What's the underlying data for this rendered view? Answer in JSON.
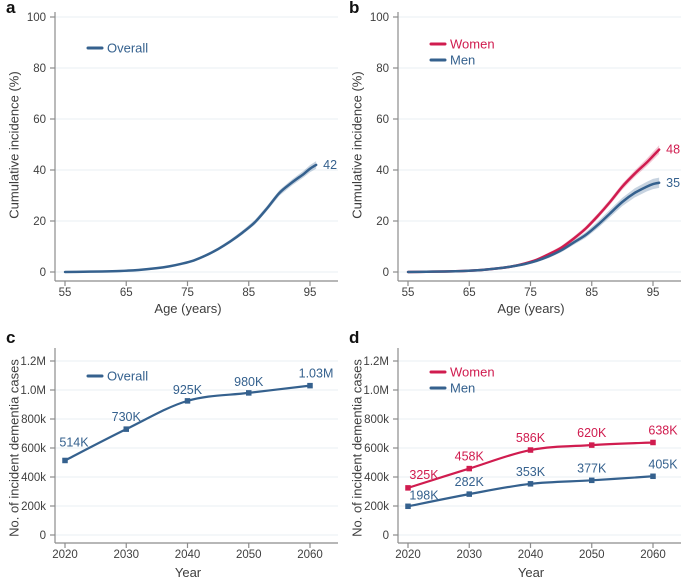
{
  "figure": {
    "background": "#ffffff",
    "grid_color": "#e8eff3",
    "axis_color": "#8c8c8c",
    "tick_text_color": "#404040"
  },
  "chart_data": [
    {
      "panel_label": "a",
      "type": "line",
      "row": "top",
      "xlabel": "Age (years)",
      "ylabel": "Cumulative incidence (%)",
      "x_ticks": [
        55,
        65,
        75,
        85,
        95
      ],
      "x_tick_labels": [
        "55",
        "65",
        "75",
        "85",
        "95"
      ],
      "y_ticks": [
        0,
        20,
        40,
        60,
        80,
        100
      ],
      "y_tick_labels": [
        "0",
        "20",
        "40",
        "60",
        "80",
        "100"
      ],
      "xlim": [
        55,
        96
      ],
      "ylim": [
        0,
        100
      ],
      "grid": true,
      "legend_position": "top-left",
      "legend": [
        {
          "label": "Overall",
          "color": "#35618e"
        }
      ],
      "series": [
        {
          "name": "Overall",
          "color": "#35618e",
          "band_opacity": 0.28,
          "x": [
            55,
            58,
            61,
            64,
            67,
            70,
            72,
            74,
            76,
            78,
            80,
            82,
            84,
            86,
            88,
            90,
            92,
            94,
            95,
            96
          ],
          "y": [
            0,
            0.1,
            0.2,
            0.4,
            0.8,
            1.5,
            2.2,
            3.2,
            4.5,
            6.5,
            9,
            12,
            15.5,
            19.5,
            25,
            31,
            35,
            38.5,
            40.5,
            42
          ],
          "band": [
            0.15,
            0.15,
            0.15,
            0.2,
            0.2,
            0.25,
            0.3,
            0.35,
            0.4,
            0.5,
            0.6,
            0.7,
            0.8,
            0.9,
            1.0,
            1.1,
            1.2,
            1.3,
            1.4,
            1.5
          ],
          "end_label": "42"
        }
      ]
    },
    {
      "panel_label": "b",
      "type": "line",
      "row": "top",
      "xlabel": "Age (years)",
      "ylabel": "Cumulative incidence (%)",
      "x_ticks": [
        55,
        65,
        75,
        85,
        95
      ],
      "x_tick_labels": [
        "55",
        "65",
        "75",
        "85",
        "95"
      ],
      "y_ticks": [
        0,
        20,
        40,
        60,
        80,
        100
      ],
      "y_tick_labels": [
        "0",
        "20",
        "40",
        "60",
        "80",
        "100"
      ],
      "xlim": [
        55,
        96
      ],
      "ylim": [
        0,
        100
      ],
      "grid": true,
      "legend_position": "top-left",
      "legend": [
        {
          "label": "Women",
          "color": "#d01c4f"
        },
        {
          "label": "Men",
          "color": "#35618e"
        }
      ],
      "series": [
        {
          "name": "Women",
          "color": "#d01c4f",
          "band_opacity": 0.25,
          "x": [
            55,
            58,
            61,
            64,
            67,
            70,
            72,
            74,
            76,
            78,
            80,
            82,
            84,
            86,
            88,
            90,
            92,
            94,
            95,
            96
          ],
          "y": [
            0,
            0.1,
            0.2,
            0.4,
            0.8,
            1.5,
            2.2,
            3.3,
            4.8,
            7,
            9.5,
            13,
            17,
            22,
            27.5,
            33.5,
            38.5,
            43,
            45.5,
            48
          ],
          "band": [
            0.15,
            0.15,
            0.15,
            0.2,
            0.25,
            0.3,
            0.35,
            0.4,
            0.5,
            0.6,
            0.7,
            0.8,
            0.9,
            1.0,
            1.1,
            1.2,
            1.3,
            1.5,
            1.6,
            1.7
          ],
          "end_label": "48"
        },
        {
          "name": "Men",
          "color": "#35618e",
          "band_opacity": 0.28,
          "x": [
            55,
            58,
            61,
            64,
            67,
            70,
            72,
            74,
            76,
            78,
            80,
            82,
            84,
            86,
            88,
            90,
            92,
            94,
            95,
            96
          ],
          "y": [
            0,
            0.1,
            0.2,
            0.4,
            0.8,
            1.5,
            2.2,
            3.1,
            4.4,
            6.2,
            8.5,
            11.5,
            14.5,
            18.5,
            23,
            27.5,
            31,
            33.5,
            34.5,
            35
          ],
          "band": [
            0.15,
            0.15,
            0.15,
            0.2,
            0.25,
            0.3,
            0.4,
            0.5,
            0.6,
            0.7,
            0.8,
            0.9,
            1.1,
            1.3,
            1.5,
            1.6,
            1.8,
            1.9,
            2.0,
            2.0
          ],
          "end_label": "35"
        }
      ]
    },
    {
      "panel_label": "c",
      "type": "line",
      "row": "bottom",
      "xlabel": "Year",
      "ylabel": "No. of incident dementia cases",
      "x_ticks": [
        2020,
        2030,
        2040,
        2050,
        2060
      ],
      "x_tick_labels": [
        "2020",
        "2030",
        "2040",
        "2050",
        "2060"
      ],
      "y_ticks": [
        0,
        200000,
        400000,
        600000,
        800000,
        1000000,
        1200000
      ],
      "y_tick_labels": [
        "0",
        "200k",
        "400k",
        "600k",
        "800k",
        "1.0M",
        "1.2M"
      ],
      "xlim": [
        2020,
        2060
      ],
      "ylim": [
        0,
        1200000
      ],
      "grid": true,
      "legend_position": "top-left",
      "legend": [
        {
          "label": "Overall",
          "color": "#35618e"
        }
      ],
      "series": [
        {
          "name": "Overall",
          "color": "#35618e",
          "marker": "square",
          "x": [
            2020,
            2030,
            2040,
            2050,
            2060
          ],
          "y": [
            514000,
            730000,
            925000,
            980000,
            1030000
          ],
          "point_labels": [
            "514K",
            "730K",
            "925K",
            "980K",
            "1.03M"
          ],
          "label_offsets": [
            [
              9,
              -14
            ],
            [
              0,
              -8
            ],
            [
              0,
              -7
            ],
            [
              0,
              -7
            ],
            [
              6,
              -8
            ]
          ]
        }
      ]
    },
    {
      "panel_label": "d",
      "type": "line",
      "row": "bottom",
      "xlabel": "Year",
      "ylabel": "No. of incident dementia cases",
      "x_ticks": [
        2020,
        2030,
        2040,
        2050,
        2060
      ],
      "x_tick_labels": [
        "2020",
        "2030",
        "2040",
        "2050",
        "2060"
      ],
      "y_ticks": [
        0,
        200000,
        400000,
        600000,
        800000,
        1000000,
        1200000
      ],
      "y_tick_labels": [
        "0",
        "200k",
        "400k",
        "600k",
        "800k",
        "1.0M",
        "1.2M"
      ],
      "xlim": [
        2020,
        2060
      ],
      "ylim": [
        0,
        1200000
      ],
      "grid": true,
      "legend_position": "top-left",
      "legend": [
        {
          "label": "Women",
          "color": "#d01c4f"
        },
        {
          "label": "Men",
          "color": "#35618e"
        }
      ],
      "series": [
        {
          "name": "Women",
          "color": "#d01c4f",
          "marker": "square",
          "x": [
            2020,
            2030,
            2040,
            2050,
            2060
          ],
          "y": [
            325000,
            458000,
            586000,
            620000,
            638000
          ],
          "point_labels": [
            "325K",
            "458K",
            "586K",
            "620K",
            "638K"
          ],
          "label_offsets": [
            [
              16,
              -9
            ],
            [
              0,
              -8
            ],
            [
              0,
              -8
            ],
            [
              0,
              -8
            ],
            [
              10,
              -8
            ]
          ]
        },
        {
          "name": "Men",
          "color": "#35618e",
          "marker": "square",
          "x": [
            2020,
            2030,
            2040,
            2050,
            2060
          ],
          "y": [
            198000,
            282000,
            353000,
            377000,
            405000
          ],
          "point_labels": [
            "198K",
            "282K",
            "353K",
            "377K",
            "405K"
          ],
          "label_offsets": [
            [
              16,
              -7
            ],
            [
              0,
              -8
            ],
            [
              0,
              -8
            ],
            [
              0,
              -8
            ],
            [
              10,
              -8
            ]
          ]
        }
      ]
    }
  ]
}
